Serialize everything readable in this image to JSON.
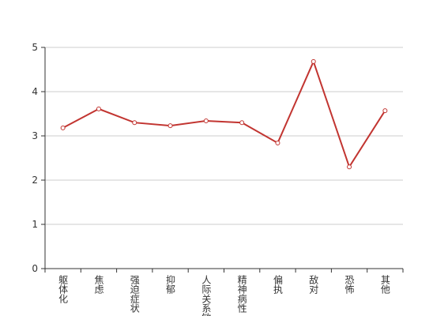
{
  "chart_data": {
    "type": "line",
    "categories": [
      "躯体化",
      "焦虑",
      "强迫症状",
      "抑郁",
      "人际关系敏感",
      "精神病性",
      "偏执",
      "敌对",
      "恐怖",
      "其他"
    ],
    "series": [
      {
        "values": [
          3.18,
          3.61,
          3.3,
          3.23,
          3.34,
          3.3,
          2.84,
          4.68,
          2.3,
          3.57
        ],
        "color": "#c23531"
      }
    ],
    "ylim": [
      0,
      5
    ],
    "yticks": [
      0,
      1,
      2,
      3,
      4,
      5
    ],
    "grid": true
  }
}
